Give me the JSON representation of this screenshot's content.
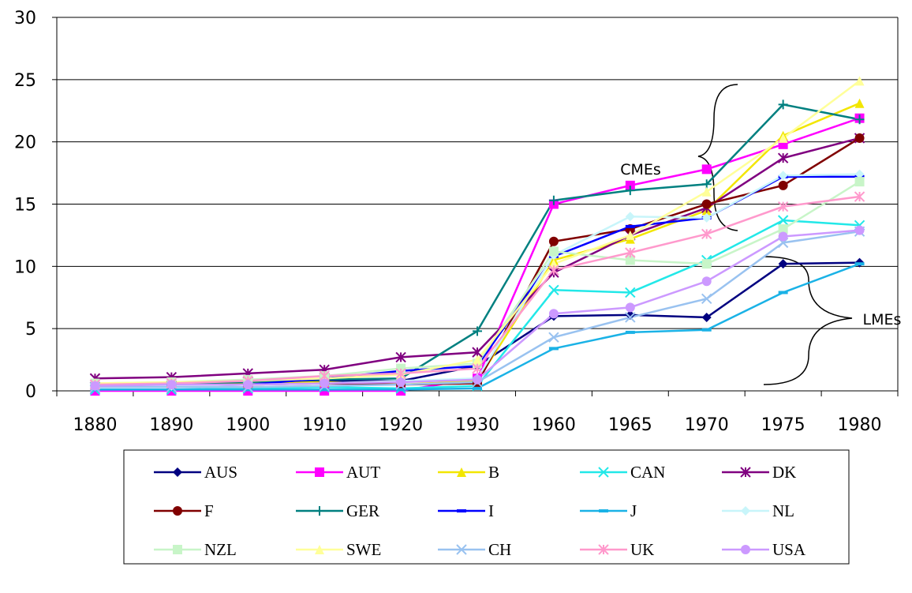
{
  "chart_data": {
    "type": "line",
    "categories": [
      "1880",
      "1890",
      "1900",
      "1910",
      "1920",
      "1930",
      "1960",
      "1965",
      "1970",
      "1975",
      "1980"
    ],
    "ylim": [
      0,
      30
    ],
    "yticks": [
      0,
      5,
      10,
      15,
      20,
      25,
      30
    ],
    "grid": true,
    "annotations": [
      "CMEs",
      "LMEs"
    ],
    "series": [
      {
        "name": "AUS",
        "color": "#000080",
        "marker": "diamond",
        "values": [
          0.5,
          0.5,
          0.6,
          0.8,
          0.8,
          2.0,
          6.0,
          6.1,
          5.9,
          10.2,
          10.3
        ]
      },
      {
        "name": "AUT",
        "color": "#ff00ff",
        "marker": "square",
        "values": [
          0,
          0,
          0,
          0,
          0,
          1.0,
          15.0,
          16.5,
          17.8,
          19.8,
          21.9
        ]
      },
      {
        "name": "B",
        "color": "#f2e600",
        "marker": "triangle",
        "values": [
          0.5,
          0.5,
          0.6,
          0.7,
          0.5,
          0.8,
          10.5,
          12.2,
          14.5,
          20.5,
          23.1
        ]
      },
      {
        "name": "CAN",
        "color": "#22e8e8",
        "marker": "x",
        "values": [
          0.1,
          0.1,
          0.2,
          0.3,
          0.2,
          0.4,
          8.1,
          7.9,
          10.5,
          13.7,
          13.3
        ]
      },
      {
        "name": "DK",
        "color": "#800080",
        "marker": "star",
        "values": [
          1.0,
          1.1,
          1.4,
          1.7,
          2.7,
          3.1,
          9.5,
          12.5,
          14.7,
          18.7,
          20.3
        ]
      },
      {
        "name": "F",
        "color": "#800000",
        "marker": "circle",
        "values": [
          0.5,
          0.5,
          0.5,
          0.6,
          0.5,
          0.6,
          12.0,
          13.0,
          15.0,
          16.5,
          20.3
        ]
      },
      {
        "name": "GER",
        "color": "#008080",
        "marker": "plus",
        "values": [
          0.5,
          0.6,
          0.7,
          0.9,
          1.0,
          4.8,
          15.3,
          16.1,
          16.6,
          23.0,
          21.8
        ]
      },
      {
        "name": "I",
        "color": "#0000ff",
        "marker": "dash",
        "values": [
          0.3,
          0.4,
          0.5,
          1.0,
          1.6,
          2.0,
          10.8,
          13.2,
          13.9,
          17.2,
          17.2
        ]
      },
      {
        "name": "J",
        "color": "#1ab2e6",
        "marker": "dash",
        "values": [
          0.1,
          0.1,
          0.1,
          0.1,
          0.1,
          0.2,
          3.4,
          4.7,
          4.9,
          7.9,
          10.2
        ]
      },
      {
        "name": "NL",
        "color": "#c8f5fa",
        "marker": "diamond",
        "values": [
          0.4,
          0.4,
          0.5,
          0.6,
          0.8,
          1.0,
          10.9,
          14.0,
          13.9,
          17.3,
          17.4
        ]
      },
      {
        "name": "NZL",
        "color": "#c8f5c8",
        "marker": "square",
        "values": [
          0.6,
          0.7,
          0.9,
          1.2,
          1.8,
          2.2,
          11.2,
          10.5,
          10.2,
          13.0,
          16.8
        ]
      },
      {
        "name": "SWE",
        "color": "#ffff99",
        "marker": "triangle",
        "values": [
          0.6,
          0.7,
          0.8,
          1.0,
          1.3,
          2.5,
          10.2,
          12.5,
          16.0,
          20.3,
          24.9
        ]
      },
      {
        "name": "CH",
        "color": "#99c2f0",
        "marker": "x",
        "values": [
          0.3,
          0.3,
          0.3,
          0.4,
          0.5,
          0.7,
          4.3,
          5.9,
          7.4,
          11.9,
          12.8
        ]
      },
      {
        "name": "UK",
        "color": "#ff99cc",
        "marker": "star",
        "values": [
          0.5,
          0.6,
          0.8,
          1.2,
          1.4,
          1.8,
          9.7,
          11.1,
          12.6,
          14.8,
          15.6
        ]
      },
      {
        "name": "USA",
        "color": "#cc99ff",
        "marker": "circle",
        "values": [
          0.4,
          0.5,
          0.5,
          0.6,
          0.7,
          0.9,
          6.2,
          6.7,
          8.8,
          12.4,
          12.9
        ]
      }
    ]
  }
}
